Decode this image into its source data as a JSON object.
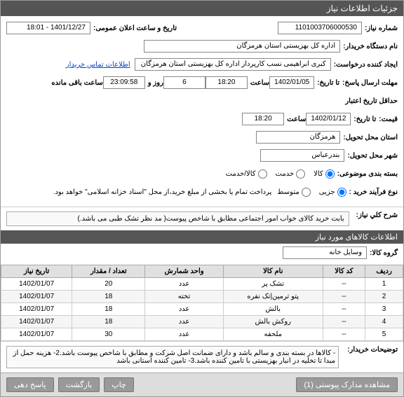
{
  "header": {
    "title": "جزئیات اطلاعات نیاز"
  },
  "form": {
    "need_number_label": "شماره نیاز:",
    "need_number": "1101003706000530",
    "announce_label": "تاریخ و ساعت اعلان عمومی:",
    "announce_value": "1401/12/27 - 18:01",
    "buyer_org_label": "نام دستگاه خریدار:",
    "buyer_org": "اداره کل بهزیستی استان هرمزگان",
    "creator_label": "ایجاد کننده درخواست:",
    "creator": "کبری   ابراهیمی نسب کارپرداز اداره کل بهزیستی استان هرمزگان",
    "contact_link": "اطلاعات تماس خریدار",
    "deadline_label": "مهلت ارسال پاسخ:",
    "deadline_to_label": "تا تاریخ:",
    "deadline_date": "1402/01/05",
    "time_label": "ساعت",
    "deadline_time": "18:20",
    "remaining_days": "6",
    "day_and_label": "روز و",
    "remaining_time": "23:09:58",
    "remaining_label": "ساعت باقی مانده",
    "validity_label": "حداقل تاریخ اعتبار",
    "price_label": "قیمت:",
    "validity_to_label": "تا تاریخ:",
    "validity_date": "1402/01/12",
    "validity_time": "18:20",
    "province_label": "استان محل تحویل:",
    "province": "هرمزگان",
    "city_label": "شهر محل تحویل:",
    "city": "بندرعباس",
    "pack_label": "بسته بندی موضوعی:",
    "pack_opts": {
      "kala": "کالا",
      "khadmat": "خدمت",
      "both": "کالا/خدمت"
    },
    "process_label": "نوع فرآیند خرید :",
    "process_opts": {
      "low": "جزیی",
      "mid": "متوسط"
    },
    "process_note": "پرداخت تمام یا بخشی از مبلغ خرید،از محل \"اسناد خزانه اسلامی\" خواهد بود.",
    "desc_label": "شرح کلي نیاز:",
    "desc_text": "بابت خرید کالای خواب امور اجتماعی مطابق با شاخص پیوست( مد نظر تشک طبی می باشد.)"
  },
  "items_header": "اطلاعات کالاهای مورد نیاز",
  "group_label": "گروه کالا:",
  "group_value": "وسایل خانه",
  "table": {
    "cols": [
      "ردیف",
      "کد کالا",
      "نام کالا",
      "واحد شمارش",
      "تعداد / مقدار",
      "تاریخ نیاز"
    ],
    "rows": [
      [
        "1",
        "--",
        "تشک پر",
        "عدد",
        "20",
        "1402/01/07"
      ],
      [
        "2",
        "--",
        "پتو ترمین|تک نفره",
        "تخته",
        "18",
        "1402/01/07"
      ],
      [
        "3",
        "--",
        "بالش",
        "عدد",
        "18",
        "1402/01/07"
      ],
      [
        "4",
        "--",
        "روکش بالش",
        "عدد",
        "18",
        "1402/01/07"
      ],
      [
        "5",
        "--",
        "ملحفه",
        "عدد",
        "30",
        "1402/01/07"
      ]
    ]
  },
  "buyer_notes_label": "توضیحات خریدار:",
  "buyer_notes": "- کالاها در بسته بندی و سالم باشد و دارای ضمانت اصل شرکت و مطابق با شاخص پیوست باشد.2- هزینه حمل از مبدا تا تخلیه در انبار بهزیستی با تامین کننده باشد.3- تامین کننده استانی باشد",
  "footer": {
    "attach": "مشاهده مدارک پیوستی (1)",
    "print": "چاپ",
    "back": "بازگشت",
    "reply": "پاسخ دهی"
  }
}
